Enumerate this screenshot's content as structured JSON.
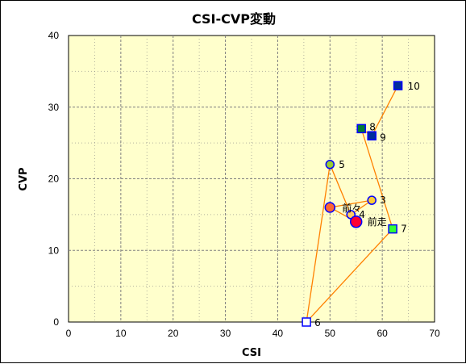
{
  "chart_data": {
    "type": "scatter",
    "title": "CSI-CVP変動",
    "xlabel": "CSI",
    "ylabel": "CVP",
    "xlim": [
      0,
      70
    ],
    "ylim": [
      0,
      40
    ],
    "xticks": [
      0,
      10,
      20,
      30,
      40,
      50,
      60,
      70
    ],
    "yticks": [
      0,
      10,
      20,
      30,
      40
    ],
    "grid": true,
    "colors": {
      "plot_background": "#FFFFCC",
      "grid": "#808080",
      "line": "#FF8000",
      "border": "#000000"
    },
    "path_order": [
      "10",
      "9",
      "8",
      "7",
      "6",
      "5",
      "4",
      "3",
      "前々",
      "前走"
    ],
    "points": [
      {
        "label": "10",
        "x": 63,
        "y": 33,
        "marker": "square",
        "fill": "#002E9B",
        "stroke": "#0000FF"
      },
      {
        "label": "9",
        "x": 58,
        "y": 26,
        "marker": "square",
        "fill": "#002E9B",
        "stroke": "#0000FF"
      },
      {
        "label": "8",
        "x": 56,
        "y": 27,
        "marker": "square",
        "fill": "#007A33",
        "stroke": "#0000FF"
      },
      {
        "label": "7",
        "x": 62,
        "y": 13,
        "marker": "square",
        "fill": "#33FF33",
        "stroke": "#0000FF"
      },
      {
        "label": "6",
        "x": 45.5,
        "y": 0,
        "marker": "square",
        "fill": "#FFFFFF",
        "stroke": "#0000FF"
      },
      {
        "label": "5",
        "x": 50,
        "y": 22,
        "marker": "circle",
        "fill": "#99CC33",
        "stroke": "#0000FF"
      },
      {
        "label": "4",
        "x": 54,
        "y": 15,
        "marker": "circle",
        "fill": "#FFCC66",
        "stroke": "#0000FF"
      },
      {
        "label": "3",
        "x": 58,
        "y": 17,
        "marker": "circle",
        "fill": "#FFCC33",
        "stroke": "#0000FF"
      },
      {
        "label": "前々",
        "x": 50,
        "y": 16,
        "marker": "circle-large",
        "fill": "#FF6633",
        "stroke": "#0000FF"
      },
      {
        "label": "前走",
        "x": 55,
        "y": 14,
        "marker": "circle-xl",
        "fill": "#FF0033",
        "stroke": "#0000FF"
      }
    ]
  }
}
